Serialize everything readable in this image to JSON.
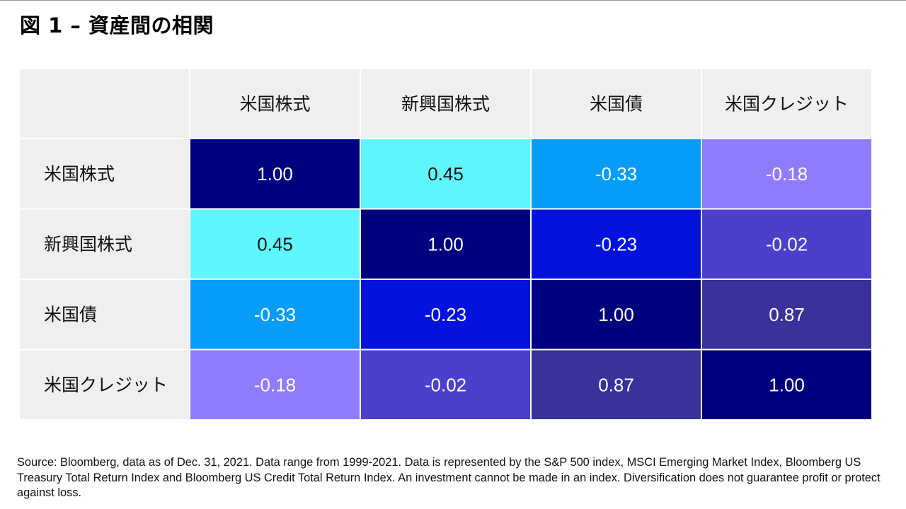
{
  "title": "図 1 – 資産間の相関",
  "chart_data": {
    "type": "heatmap",
    "title": "図 1 – 資産間の相関",
    "columns": [
      "米国株式",
      "新興国株式",
      "米国債",
      "米国クレジット"
    ],
    "rows": [
      "米国株式",
      "新興国株式",
      "米国債",
      "米国クレジット"
    ],
    "values": [
      [
        "1.00",
        "0.45",
        "-0.33",
        "-0.18"
      ],
      [
        "0.45",
        "1.00",
        "-0.23",
        "-0.02"
      ],
      [
        "-0.33",
        "-0.23",
        "1.00",
        "0.87"
      ],
      [
        "-0.18",
        "-0.02",
        "0.87",
        "1.00"
      ]
    ],
    "colors": {
      "1.00": "#00007e",
      "0.87": "#3a319b",
      "0.45": "#5ff7fd",
      "-0.02": "#4a40cc",
      "-0.18": "#8d7dfc",
      "-0.23": "#0313dd",
      "-0.33": "#089cfa",
      "header_bg": "#efefef",
      "grid_line": "#ffffff"
    },
    "text_colors": {
      "dark_on_light": "#111111",
      "light_on_dark": "#ffffff"
    }
  },
  "source_note": "Source: Bloomberg, data as of Dec. 31, 2021. Data range from 1999-2021. Data is represented by the S&P 500 index, MSCI Emerging Market Index, Bloomberg US Treasury Total Return Index and Bloomberg US Credit Total Return Index. An investment cannot be made in an index. Diversification does not guarantee profit or protect against loss."
}
